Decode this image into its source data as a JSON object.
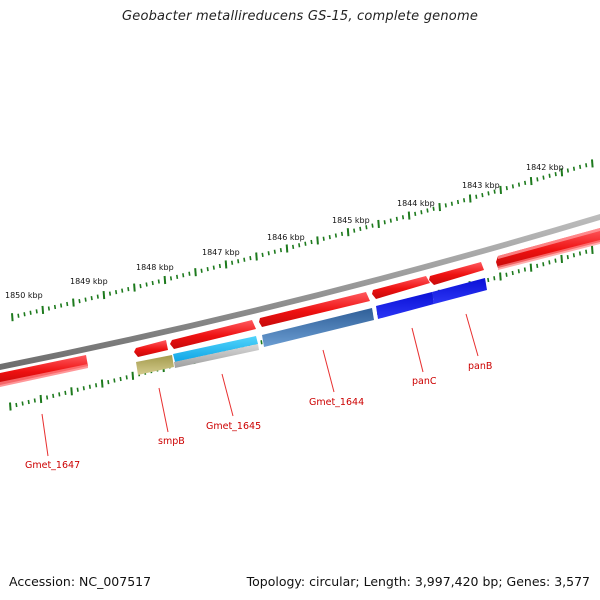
{
  "title": "Geobacter metallireducens GS-15, complete genome",
  "footer": {
    "accession": "Accession: NC_007517",
    "genome_info": "Topology: circular; Length: 3,997,420 bp; Genes: 3,577"
  },
  "scale_labels": [
    "1842 kbp",
    "1843 kbp",
    "1844 kbp",
    "1845 kbp",
    "1846 kbp",
    "1847 kbp",
    "1848 kbp",
    "1849 kbp",
    "1850 kbp"
  ],
  "gene_labels": [
    "Gmet_1647",
    "smpB",
    "Gmet_1645",
    "Gmet_1644",
    "panC",
    "panB"
  ],
  "colors": {
    "gene_label": "#cc0000",
    "leader_line": "#e83030",
    "tick": "#1d7a1d",
    "backbone": "#888888",
    "cds_forward": "#e8111a",
    "cds_reverse_row_top": "#e8111a",
    "smpB_feature": "#bdb36a",
    "gmet1645_feature_top": "#20b8ee",
    "gmet1645_feature_bottom": "#c2c2c2",
    "gmet1644_feature": "#3d78b8",
    "pan_feature": "#0b14e0"
  }
}
